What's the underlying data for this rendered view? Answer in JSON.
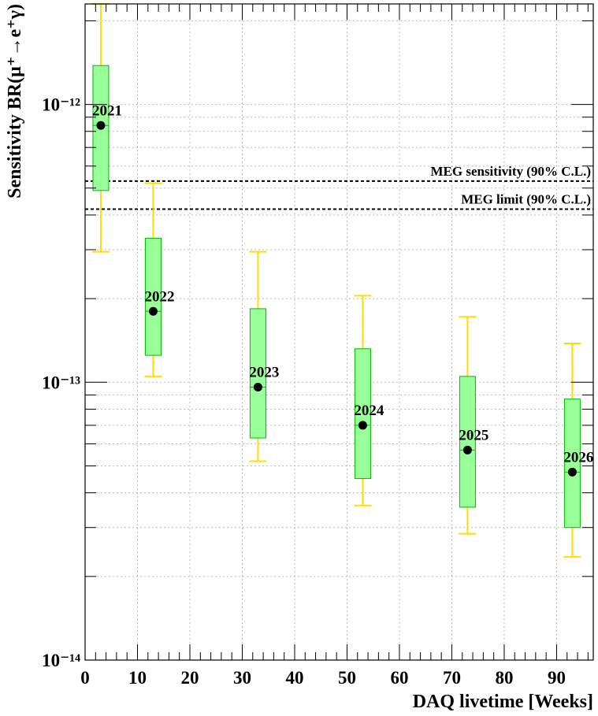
{
  "chart_data": {
    "type": "box",
    "title": "",
    "xlabel": "DAQ livetime [Weeks]",
    "ylabel": "Sensitivity BR(μ⁺→e⁺γ)",
    "xlim": [
      0,
      97
    ],
    "ylim": [
      1e-14,
      2.3e-12
    ],
    "yscale": "log",
    "grid": true,
    "x_ticks": [
      0,
      10,
      20,
      30,
      40,
      50,
      60,
      70,
      80,
      90
    ],
    "y_ticks": [
      {
        "value": 1e-14,
        "label": "10⁻¹⁴"
      },
      {
        "value": 1e-13,
        "label": "10⁻¹³"
      },
      {
        "value": 1e-12,
        "label": "10⁻¹²"
      }
    ],
    "points": [
      {
        "label": "2021",
        "x": 3,
        "median": 8.4e-13,
        "box_low": 4.9e-13,
        "box_high": 1.38e-12,
        "whisker_low": 2.95e-13,
        "whisker_high": 2.3e-12
      },
      {
        "label": "2022",
        "x": 13,
        "median": 1.8e-13,
        "box_low": 1.25e-13,
        "box_high": 3.3e-13,
        "whisker_low": 1.05e-13,
        "whisker_high": 5.2e-13
      },
      {
        "label": "2023",
        "x": 33,
        "median": 9.6e-14,
        "box_low": 6.3e-14,
        "box_high": 1.84e-13,
        "whisker_low": 5.2e-14,
        "whisker_high": 2.95e-13
      },
      {
        "label": "2024",
        "x": 53,
        "median": 7e-14,
        "box_low": 4.5e-14,
        "box_high": 1.32e-13,
        "whisker_low": 3.6e-14,
        "whisker_high": 2.05e-13
      },
      {
        "label": "2025",
        "x": 73,
        "median": 5.7e-14,
        "box_low": 3.55e-14,
        "box_high": 1.05e-13,
        "whisker_low": 2.85e-14,
        "whisker_high": 1.72e-13
      },
      {
        "label": "2026",
        "x": 93,
        "median": 4.75e-14,
        "box_low": 3e-14,
        "box_high": 8.7e-14,
        "whisker_low": 2.35e-14,
        "whisker_high": 1.38e-13
      }
    ],
    "reference_lines": [
      {
        "label": "MEG sensitivity (90% C.L.)",
        "y": 5.3e-13
      },
      {
        "label": "MEG limit (90% C.L.)",
        "y": 4.2e-13
      }
    ],
    "colors": {
      "box_fill": "#99ff99",
      "box_edge": "#00bb00",
      "whisker": "#ffdd00",
      "marker": "#000000",
      "grid": "#bbbbbb"
    }
  }
}
